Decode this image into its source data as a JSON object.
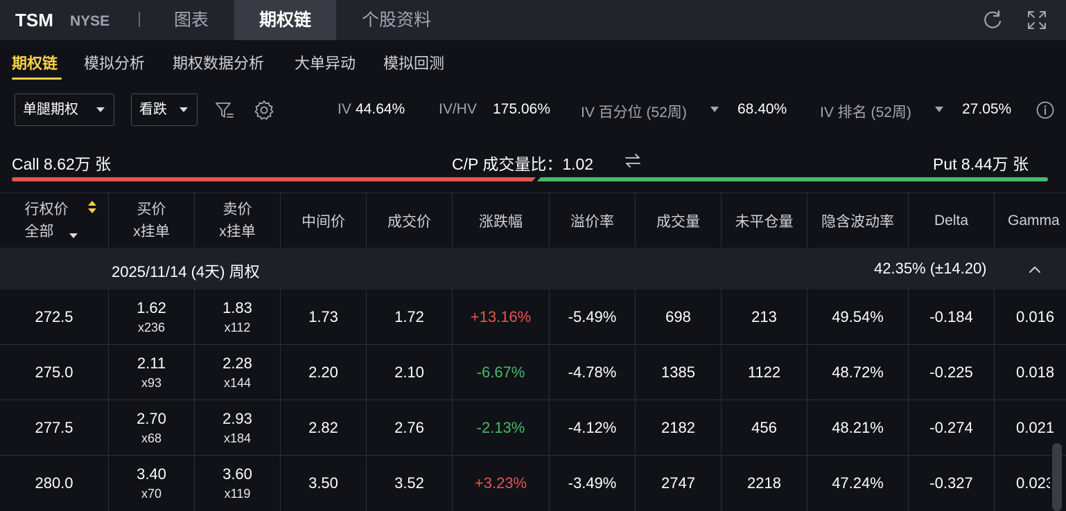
{
  "topbar": {
    "ticker": "TSM",
    "exchange": "NYSE",
    "tabs": [
      "图表",
      "期权链",
      "个股资料"
    ],
    "active_tab": "期权链",
    "icons": [
      "refresh-icon",
      "fullscreen-icon"
    ]
  },
  "subtabs": {
    "items": [
      "期权链",
      "模拟分析",
      "期权数据分析",
      "大单异动",
      "模拟回测"
    ],
    "active": "期权链"
  },
  "filters": {
    "leg_type": "单腿期权",
    "direction": "看跌",
    "iv_label": "IV",
    "iv_value": "44.64%",
    "ivhv_label": "IV/HV",
    "ivhv_value": "175.06%",
    "iv_pct_label": "IV 百分位 (52周)",
    "iv_pct_value": "68.40%",
    "iv_rank_label": "IV 排名 (52周)",
    "iv_rank_value": "27.05%"
  },
  "volume": {
    "call_text": "Call 8.62万 张",
    "ratio_text": "C/P 成交量比：1.02",
    "put_text": "Put 8.44万 张"
  },
  "table": {
    "headers": {
      "strike": "行权价",
      "strike_filter": "全部",
      "bid_1": "买价",
      "bid_2": "x挂单",
      "ask_1": "卖价",
      "ask_2": "x挂单",
      "mid": "中间价",
      "last": "成交价",
      "change": "涨跌幅",
      "premium": "溢价率",
      "volume": "成交量",
      "oi": "未平仓量",
      "iv": "隐含波动率",
      "delta": "Delta",
      "gamma": "Gamma"
    },
    "group": {
      "date": "2025/11/14 (4天) 周权",
      "iv": "42.35%  (±14.20)"
    },
    "rows": [
      {
        "strike": "272.5",
        "bid": "1.62",
        "bid_size": "x236",
        "ask": "1.83",
        "ask_size": "x112",
        "mid": "1.73",
        "last": "1.72",
        "change": "+13.16%",
        "premium": "-5.49%",
        "volume": "698",
        "oi": "213",
        "iv": "49.54%",
        "delta": "-0.184",
        "gamma": "0.016"
      },
      {
        "strike": "275.0",
        "bid": "2.11",
        "bid_size": "x93",
        "ask": "2.28",
        "ask_size": "x144",
        "mid": "2.20",
        "last": "2.10",
        "change": "-6.67%",
        "premium": "-4.78%",
        "volume": "1385",
        "oi": "1122",
        "iv": "48.72%",
        "delta": "-0.225",
        "gamma": "0.018"
      },
      {
        "strike": "277.5",
        "bid": "2.70",
        "bid_size": "x68",
        "ask": "2.93",
        "ask_size": "x184",
        "mid": "2.82",
        "last": "2.76",
        "change": "-2.13%",
        "premium": "-4.12%",
        "volume": "2182",
        "oi": "456",
        "iv": "48.21%",
        "delta": "-0.274",
        "gamma": "0.021"
      },
      {
        "strike": "280.0",
        "bid": "3.40",
        "bid_size": "x70",
        "ask": "3.60",
        "ask_size": "x119",
        "mid": "3.50",
        "last": "3.52",
        "change": "+3.23%",
        "premium": "-3.49%",
        "volume": "2747",
        "oi": "2218",
        "iv": "47.24%",
        "delta": "-0.327",
        "gamma": "0.023"
      }
    ]
  },
  "colors": {
    "up": "#e8544d",
    "down": "#46b96a",
    "accent": "#f6d147",
    "background": "#111217"
  }
}
